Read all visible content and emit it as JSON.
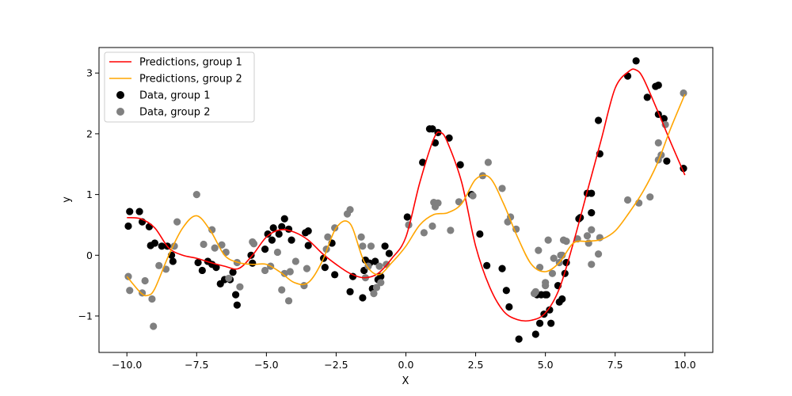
{
  "chart_data": {
    "type": "scatter",
    "title": "",
    "xlabel": "X",
    "ylabel": "y",
    "xlim": [
      -11.0,
      11.0
    ],
    "ylim": [
      -1.6,
      3.42
    ],
    "xticks": [
      -10.0,
      -7.5,
      -5.0,
      -2.5,
      0.0,
      2.5,
      5.0,
      7.5,
      10.0
    ],
    "xtick_labels": [
      "−10.0",
      "−7.5",
      "−5.0",
      "−2.5",
      "0.0",
      "2.5",
      "5.0",
      "7.5",
      "10.0"
    ],
    "yticks": [
      -1,
      0,
      1,
      2,
      3
    ],
    "ytick_labels": [
      "−1",
      "0",
      "1",
      "2",
      "3"
    ],
    "grid": false,
    "legend_position": "top-left",
    "legend": [
      {
        "label": "Predictions, group 1",
        "kind": "line",
        "color": "#ff0000"
      },
      {
        "label": "Predictions, group 2",
        "kind": "line",
        "color": "#ffa500"
      },
      {
        "label": "Data, group 1",
        "kind": "marker",
        "color": "#000000"
      },
      {
        "label": "Data, group 2",
        "kind": "marker",
        "color": "#808080"
      }
    ],
    "line_series": [
      {
        "name": "Predictions, group 1",
        "color": "#ff0000",
        "x": [
          -10.0,
          -9.5,
          -9.0,
          -8.5,
          -8.0,
          -7.5,
          -7.0,
          -6.5,
          -6.0,
          -5.5,
          -5.0,
          -4.5,
          -4.0,
          -3.5,
          -3.0,
          -2.5,
          -2.0,
          -1.5,
          -1.0,
          -0.5,
          0.0,
          0.5,
          1.0,
          1.25,
          1.5,
          2.0,
          2.5,
          3.0,
          3.5,
          4.0,
          4.5,
          5.0,
          5.5,
          6.0,
          6.5,
          7.0,
          7.5,
          8.0,
          8.25,
          8.5,
          9.0,
          9.5,
          10.0
        ],
        "y": [
          0.62,
          0.6,
          0.45,
          0.12,
          0.0,
          -0.05,
          -0.12,
          -0.18,
          -0.22,
          0.0,
          0.3,
          0.42,
          0.38,
          0.25,
          0.03,
          -0.15,
          -0.3,
          -0.37,
          -0.3,
          -0.05,
          0.3,
          1.2,
          1.92,
          2.02,
          1.85,
          1.2,
          0.15,
          -0.52,
          -0.92,
          -1.06,
          -1.07,
          -0.95,
          -0.55,
          0.2,
          1.05,
          1.9,
          2.75,
          3.03,
          3.05,
          2.92,
          2.4,
          1.85,
          1.32
        ]
      },
      {
        "name": "Predictions, group 2",
        "color": "#ffa500",
        "x": [
          -10.0,
          -9.5,
          -9.25,
          -9.0,
          -8.5,
          -8.0,
          -7.5,
          -7.0,
          -6.5,
          -6.0,
          -5.5,
          -5.0,
          -4.5,
          -4.0,
          -3.5,
          -3.0,
          -2.5,
          -2.0,
          -1.5,
          -1.0,
          -0.5,
          0.0,
          0.5,
          1.0,
          1.5,
          2.0,
          2.5,
          3.0,
          3.5,
          4.0,
          4.5,
          5.0,
          5.5,
          6.0,
          6.5,
          7.0,
          7.5,
          8.0,
          8.5,
          9.0,
          9.5,
          10.0
        ],
        "y": [
          -0.35,
          -0.62,
          -0.66,
          -0.55,
          0.0,
          0.45,
          0.65,
          0.4,
          0.0,
          -0.12,
          -0.15,
          -0.15,
          -0.28,
          -0.45,
          -0.45,
          -0.1,
          0.45,
          0.52,
          -0.1,
          -0.32,
          -0.12,
          0.15,
          0.5,
          0.67,
          0.7,
          0.85,
          1.25,
          1.28,
          0.85,
          0.3,
          -0.15,
          -0.27,
          -0.12,
          0.2,
          0.23,
          0.26,
          0.4,
          0.7,
          1.05,
          1.5,
          2.1,
          2.65
        ]
      }
    ],
    "scatter_series": [
      {
        "name": "Data, group 1",
        "color": "#000000",
        "points": [
          [
            -9.95,
            0.48
          ],
          [
            -9.9,
            0.72
          ],
          [
            -9.55,
            0.72
          ],
          [
            -9.45,
            0.55
          ],
          [
            -9.2,
            0.47
          ],
          [
            -9.15,
            0.16
          ],
          [
            -9.0,
            0.2
          ],
          [
            -8.75,
            0.15
          ],
          [
            -8.55,
            0.15
          ],
          [
            -8.4,
            0.0
          ],
          [
            -8.35,
            -0.1
          ],
          [
            -7.45,
            -0.12
          ],
          [
            -7.3,
            -0.25
          ],
          [
            -7.1,
            -0.1
          ],
          [
            -6.95,
            -0.15
          ],
          [
            -6.8,
            -0.2
          ],
          [
            -6.65,
            -0.47
          ],
          [
            -6.5,
            -0.4
          ],
          [
            -6.3,
            -0.4
          ],
          [
            -6.2,
            -0.28
          ],
          [
            -6.1,
            -0.65
          ],
          [
            -6.05,
            -0.82
          ],
          [
            -5.55,
            0.0
          ],
          [
            -5.5,
            -0.13
          ],
          [
            -5.05,
            0.1
          ],
          [
            -4.95,
            0.35
          ],
          [
            -4.8,
            0.25
          ],
          [
            -4.75,
            0.45
          ],
          [
            -4.55,
            0.35
          ],
          [
            -4.45,
            0.47
          ],
          [
            -4.35,
            0.6
          ],
          [
            -4.2,
            0.43
          ],
          [
            -4.1,
            0.25
          ],
          [
            -3.6,
            0.37
          ],
          [
            -3.5,
            0.4
          ],
          [
            -3.5,
            0.16
          ],
          [
            -2.95,
            -0.05
          ],
          [
            -2.9,
            -0.2
          ],
          [
            -2.65,
            0.2
          ],
          [
            -2.55,
            -0.32
          ],
          [
            -2.0,
            -0.6
          ],
          [
            -1.9,
            -0.35
          ],
          [
            -1.55,
            -0.7
          ],
          [
            -1.5,
            -0.25
          ],
          [
            -1.45,
            -0.08
          ],
          [
            -1.3,
            -0.13
          ],
          [
            -1.2,
            -0.55
          ],
          [
            -1.1,
            -0.1
          ],
          [
            -1.0,
            -0.4
          ],
          [
            -0.9,
            -0.35
          ],
          [
            -0.75,
            0.15
          ],
          [
            -0.6,
            0.03
          ],
          [
            0.05,
            0.63
          ],
          [
            0.6,
            1.53
          ],
          [
            0.85,
            2.08
          ],
          [
            0.95,
            2.08
          ],
          [
            1.05,
            1.85
          ],
          [
            1.15,
            2.02
          ],
          [
            1.55,
            1.93
          ],
          [
            1.95,
            1.49
          ],
          [
            2.35,
            1.0
          ],
          [
            2.65,
            0.35
          ],
          [
            2.9,
            -0.17
          ],
          [
            3.45,
            -0.22
          ],
          [
            3.6,
            -0.58
          ],
          [
            3.7,
            -0.85
          ],
          [
            4.05,
            -1.38
          ],
          [
            4.65,
            -1.3
          ],
          [
            4.7,
            -0.65
          ],
          [
            4.8,
            -1.12
          ],
          [
            4.85,
            -0.65
          ],
          [
            4.95,
            -0.97
          ],
          [
            5.0,
            -0.65
          ],
          [
            5.05,
            -0.65
          ],
          [
            5.15,
            -0.9
          ],
          [
            5.2,
            -1.12
          ],
          [
            5.45,
            -0.5
          ],
          [
            5.5,
            -0.77
          ],
          [
            5.6,
            -0.72
          ],
          [
            5.7,
            -0.3
          ],
          [
            5.75,
            -0.12
          ],
          [
            6.2,
            0.6
          ],
          [
            6.25,
            0.62
          ],
          [
            6.5,
            1.02
          ],
          [
            6.65,
            1.02
          ],
          [
            6.65,
            0.7
          ],
          [
            6.9,
            2.22
          ],
          [
            6.95,
            1.67
          ],
          [
            7.95,
            2.95
          ],
          [
            8.25,
            3.2
          ],
          [
            8.65,
            2.6
          ],
          [
            8.95,
            2.78
          ],
          [
            9.05,
            2.8
          ],
          [
            9.05,
            2.32
          ],
          [
            9.25,
            2.25
          ],
          [
            9.35,
            1.55
          ],
          [
            9.95,
            1.43
          ]
        ]
      },
      {
        "name": "Data, group 2",
        "color": "#808080",
        "points": [
          [
            -9.95,
            -0.35
          ],
          [
            -9.9,
            -0.58
          ],
          [
            -9.45,
            -0.62
          ],
          [
            -9.35,
            -0.42
          ],
          [
            -9.1,
            -0.72
          ],
          [
            -9.05,
            -1.17
          ],
          [
            -8.85,
            -0.17
          ],
          [
            -8.6,
            -0.23
          ],
          [
            -8.3,
            0.15
          ],
          [
            -8.2,
            0.55
          ],
          [
            -7.5,
            1.0
          ],
          [
            -7.25,
            0.18
          ],
          [
            -6.95,
            0.42
          ],
          [
            -6.85,
            0.12
          ],
          [
            -6.6,
            0.17
          ],
          [
            -6.45,
            0.05
          ],
          [
            -6.35,
            -0.38
          ],
          [
            -6.05,
            -0.12
          ],
          [
            -5.95,
            -0.52
          ],
          [
            -5.5,
            0.22
          ],
          [
            -5.45,
            0.19
          ],
          [
            -5.05,
            -0.25
          ],
          [
            -4.85,
            -0.18
          ],
          [
            -4.6,
            0.05
          ],
          [
            -4.45,
            -0.57
          ],
          [
            -4.35,
            -0.3
          ],
          [
            -4.2,
            -0.75
          ],
          [
            -4.15,
            -0.27
          ],
          [
            -3.95,
            -0.1
          ],
          [
            -3.65,
            -0.5
          ],
          [
            -3.55,
            -0.22
          ],
          [
            -2.85,
            0.1
          ],
          [
            -2.8,
            0.3
          ],
          [
            -2.55,
            0.45
          ],
          [
            -2.1,
            0.68
          ],
          [
            -2.0,
            0.75
          ],
          [
            -1.6,
            0.3
          ],
          [
            -1.55,
            0.15
          ],
          [
            -1.45,
            -0.37
          ],
          [
            -1.35,
            -0.18
          ],
          [
            -1.25,
            0.15
          ],
          [
            -1.15,
            -0.63
          ],
          [
            -1.05,
            -0.53
          ],
          [
            -0.95,
            -0.18
          ],
          [
            -0.9,
            -0.45
          ],
          [
            -0.7,
            -0.15
          ],
          [
            0.1,
            0.5
          ],
          [
            0.65,
            0.37
          ],
          [
            0.95,
            0.48
          ],
          [
            1.0,
            0.87
          ],
          [
            1.05,
            0.8
          ],
          [
            1.15,
            0.86
          ],
          [
            1.6,
            0.41
          ],
          [
            1.9,
            0.88
          ],
          [
            2.4,
            0.98
          ],
          [
            2.75,
            1.31
          ],
          [
            2.95,
            1.53
          ],
          [
            3.45,
            1.1
          ],
          [
            3.65,
            0.55
          ],
          [
            3.75,
            0.63
          ],
          [
            3.95,
            0.43
          ],
          [
            4.6,
            -0.63
          ],
          [
            4.65,
            -0.6
          ],
          [
            4.75,
            0.08
          ],
          [
            4.8,
            -0.2
          ],
          [
            5.0,
            -0.45
          ],
          [
            5.0,
            -0.5
          ],
          [
            5.1,
            0.25
          ],
          [
            5.25,
            -0.3
          ],
          [
            5.3,
            -0.05
          ],
          [
            5.5,
            -0.12
          ],
          [
            5.55,
            0.0
          ],
          [
            5.6,
            0.0
          ],
          [
            5.65,
            0.25
          ],
          [
            5.75,
            0.23
          ],
          [
            6.15,
            0.27
          ],
          [
            6.5,
            0.32
          ],
          [
            6.55,
            0.2
          ],
          [
            6.65,
            0.42
          ],
          [
            6.65,
            -0.15
          ],
          [
            6.9,
            0.02
          ],
          [
            6.95,
            0.29
          ],
          [
            7.95,
            0.91
          ],
          [
            8.35,
            0.86
          ],
          [
            8.75,
            0.96
          ],
          [
            9.05,
            1.57
          ],
          [
            9.05,
            1.85
          ],
          [
            9.15,
            1.65
          ],
          [
            9.3,
            2.15
          ],
          [
            9.95,
            2.67
          ]
        ]
      }
    ]
  }
}
